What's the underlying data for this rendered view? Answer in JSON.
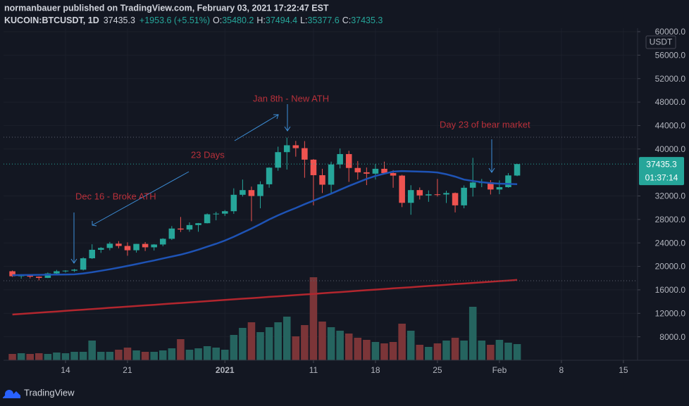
{
  "chart_data": {
    "type": "candlestick",
    "title": "normanbauer published on TradingView.com, February 03, 2021 17:22:47 EST",
    "symbol": "KUCOIN:BTCUSDT, 1D",
    "change": "+1953.6 (+5.51%)",
    "ohlc_labels": [
      "O:",
      "H:",
      "L:",
      "C:"
    ],
    "currency": "USDT",
    "countdown": "01:37:14",
    "watermark": "TradingView",
    "annotations": [
      "Dec 16 - Broke ATH",
      "23 Days",
      "Jan 8th - New ATH",
      "Day 23 of bear market"
    ],
    "up_color": "#26a69a",
    "down_color": "#ef5350",
    "volume_up_color": "#25645f",
    "volume_down_color": "#7b3538",
    "grid": true,
    "ylim": [
      4000,
      60600
    ],
    "yticks": [
      {
        "value": 60000,
        "label": "60000.0"
      },
      {
        "value": 56000,
        "label": "56000.0"
      },
      {
        "value": 52000,
        "label": "52000.0"
      },
      {
        "value": 48000,
        "label": "48000.0"
      },
      {
        "value": 44000,
        "label": "44000.0"
      },
      {
        "value": 40000,
        "label": "40000.0"
      },
      {
        "value": 32000,
        "label": "32000.0"
      },
      {
        "value": 28000,
        "label": "28000.0"
      },
      {
        "value": 24000,
        "label": "24000.0"
      },
      {
        "value": 20000,
        "label": "20000.0"
      },
      {
        "value": 16000,
        "label": "16000.0"
      },
      {
        "value": 12000,
        "label": "12000.0"
      },
      {
        "value": 8000,
        "label": "8000.0"
      }
    ],
    "xlim": [
      -1,
      70.6
    ],
    "xticks": [
      {
        "value": 6,
        "label": "14"
      },
      {
        "value": 13,
        "label": "21"
      },
      {
        "value": 24,
        "label": "2021"
      },
      {
        "value": 34,
        "label": "11"
      },
      {
        "value": 41,
        "label": "18"
      },
      {
        "value": 48,
        "label": "25"
      },
      {
        "value": 55,
        "label": "Feb"
      },
      {
        "value": 62,
        "label": "8"
      },
      {
        "value": 69,
        "label": "15"
      }
    ],
    "open": [
      19170,
      18320,
      18550,
      18250,
      18040,
      18800,
      19170,
      19270,
      19440,
      21380,
      22830,
      23140,
      23870,
      23480,
      22750,
      23830,
      23250,
      23730,
      24700,
      26450,
      26280,
      27040,
      27360,
      28880,
      28990,
      29400,
      32200,
      33000,
      31990,
      33990,
      36820,
      39470,
      40640,
      40150,
      38190,
      35540,
      33920,
      37370,
      39140,
      36770,
      36030,
      35800,
      36630,
      35900,
      35470,
      30830,
      33000,
      32090,
      32280,
      32250,
      32500,
      30400,
      33400,
      34300,
      34320,
      33100,
      33500,
      35480.2
    ],
    "high": [
      19300,
      18650,
      18600,
      18300,
      18950,
      19400,
      19350,
      19570,
      21560,
      23770,
      23290,
      24170,
      24300,
      24100,
      23840,
      24150,
      23800,
      24800,
      26870,
      28420,
      27500,
      27400,
      29020,
      29300,
      29600,
      33300,
      34800,
      33600,
      34500,
      36900,
      40400,
      41950,
      41380,
      41350,
      38300,
      36630,
      37850,
      40100,
      39700,
      37950,
      36850,
      37450,
      37850,
      36400,
      35600,
      33830,
      33450,
      32950,
      34900,
      32900,
      32600,
      33800,
      38500,
      34900,
      34700,
      34650,
      35900,
      37494.4
    ],
    "low": [
      18200,
      17900,
      17950,
      17600,
      18000,
      18750,
      18950,
      19050,
      19300,
      21260,
      22300,
      22750,
      23080,
      21810,
      22350,
      22620,
      22700,
      23420,
      24500,
      25850,
      25900,
      25900,
      27320,
      27850,
      28600,
      28950,
      31900,
      27700,
      29900,
      33400,
      36300,
      36500,
      38700,
      35100,
      30400,
      32500,
      32400,
      36700,
      34400,
      34800,
      33850,
      34800,
      35900,
      33400,
      30100,
      28800,
      31400,
      31000,
      31900,
      30800,
      29200,
      29900,
      31900,
      33500,
      32250,
      32300,
      33400,
      35377.6
    ],
    "close": [
      18320,
      18550,
      18250,
      18040,
      18800,
      19170,
      19270,
      19440,
      21380,
      22830,
      23140,
      23870,
      23480,
      22750,
      23830,
      23250,
      23730,
      24700,
      26450,
      26280,
      27040,
      27360,
      28880,
      28990,
      29400,
      32200,
      33000,
      31990,
      33990,
      36820,
      39470,
      40640,
      40150,
      38190,
      35540,
      33920,
      37370,
      39140,
      36770,
      36030,
      35800,
      36630,
      35900,
      35470,
      30830,
      33000,
      32090,
      32280,
      32250,
      32500,
      30400,
      33400,
      34300,
      34320,
      33100,
      33500,
      35500,
      37435.3
    ],
    "volume": [
      9,
      10,
      9,
      10,
      9,
      11,
      10,
      12,
      12,
      28,
      12,
      12,
      15,
      18,
      14,
      12,
      12,
      14,
      17,
      30,
      15,
      17,
      20,
      18,
      15,
      36,
      46,
      54,
      40,
      47,
      54,
      62,
      34,
      50,
      118,
      55,
      47,
      42,
      38,
      32,
      29,
      26,
      24,
      26,
      52,
      42,
      22,
      19,
      24,
      28,
      32,
      28,
      76,
      28,
      22,
      29,
      25,
      23
    ],
    "lines": [
      {
        "color": "#1e53b5",
        "values": [
          18500,
          18520,
          18540,
          18560,
          18580,
          18600,
          18620,
          18640,
          18800,
          19000,
          19250,
          19500,
          19780,
          20080,
          20380,
          20700,
          21000,
          21350,
          21680,
          22000,
          22400,
          22850,
          23350,
          23850,
          24400,
          25050,
          25750,
          26450,
          27200,
          28000,
          28700,
          29350,
          29950,
          30600,
          31200,
          31800,
          32400,
          33050,
          33700,
          34300,
          34900,
          35400,
          35800,
          36150,
          36250,
          36200,
          36150,
          36100,
          36000,
          35700,
          35300,
          34800,
          34550,
          34350,
          34200,
          34100,
          34050,
          34000
        ]
      },
      {
        "color": "#b2262e",
        "values": [
          11800,
          11900,
          12000,
          12110,
          12210,
          12310,
          12420,
          12520,
          12620,
          12730,
          12830,
          12940,
          13040,
          13140,
          13250,
          13350,
          13450,
          13560,
          13660,
          13760,
          13870,
          13970,
          14070,
          14180,
          14280,
          14380,
          14490,
          14590,
          14690,
          14800,
          14900,
          15000,
          15110,
          15210,
          15310,
          15420,
          15520,
          15620,
          15730,
          15830,
          15940,
          16040,
          16140,
          16250,
          16350,
          16450,
          16560,
          16660,
          16760,
          16870,
          16970,
          17070,
          17180,
          17280,
          17380,
          17490,
          17590,
          17690
        ]
      }
    ]
  }
}
